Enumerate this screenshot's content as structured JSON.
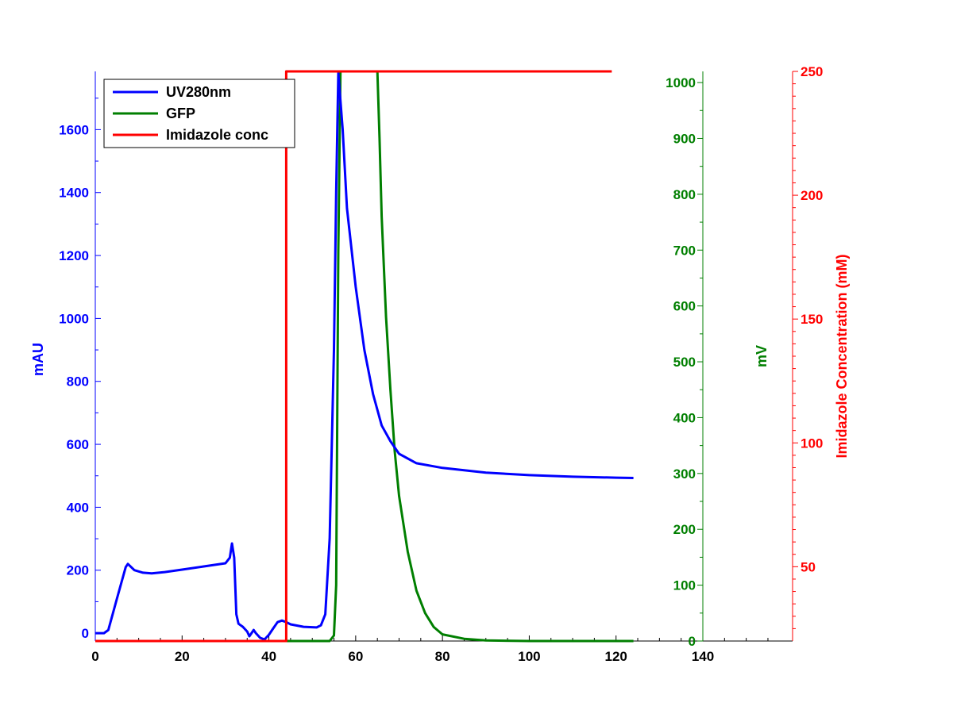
{
  "chart_data": {
    "type": "line",
    "x": {
      "ticks": [
        "0",
        "20",
        "40",
        "60",
        "80",
        "100",
        "120",
        "140"
      ],
      "lim": [
        0,
        140
      ]
    },
    "y_left": {
      "label": "mAU",
      "ticks": [
        "0",
        "200",
        "400",
        "600",
        "800",
        "1000",
        "1200",
        "1400",
        "1600"
      ],
      "lim": [
        -25,
        1785
      ],
      "color": "#0000ff"
    },
    "y_mid": {
      "label": "mV",
      "ticks": [
        "0",
        "100",
        "200",
        "300",
        "400",
        "500",
        "600",
        "700",
        "800",
        "900",
        "1000"
      ],
      "lim": [
        0,
        1020
      ],
      "color": "#007f00"
    },
    "y_right": {
      "label": "Imidazole Concentration (mM)",
      "ticks": [
        "50",
        "100",
        "150",
        "200",
        "250"
      ],
      "lim": [
        20,
        250
      ],
      "color": "#ff0000"
    },
    "legend": {
      "position": "top-left"
    },
    "series": [
      {
        "name": "UV280nm",
        "axis": "left",
        "color": "#0000ff",
        "points": [
          [
            0,
            0
          ],
          [
            2,
            0
          ],
          [
            3,
            10
          ],
          [
            5,
            110
          ],
          [
            7,
            210
          ],
          [
            7.5,
            220
          ],
          [
            9,
            200
          ],
          [
            11,
            192
          ],
          [
            13,
            190
          ],
          [
            16,
            194
          ],
          [
            20,
            202
          ],
          [
            25,
            212
          ],
          [
            30,
            222
          ],
          [
            31,
            240
          ],
          [
            31.5,
            285
          ],
          [
            32,
            240
          ],
          [
            32.5,
            60
          ],
          [
            33,
            30
          ],
          [
            34,
            20
          ],
          [
            35,
            5
          ],
          [
            35.5,
            -10
          ],
          [
            36,
            0
          ],
          [
            36.5,
            10
          ],
          [
            37,
            0
          ],
          [
            38,
            -15
          ],
          [
            39,
            -20
          ],
          [
            40,
            -5
          ],
          [
            41,
            15
          ],
          [
            42,
            35
          ],
          [
            43,
            40
          ],
          [
            44,
            35
          ],
          [
            45,
            28
          ],
          [
            48,
            20
          ],
          [
            51,
            18
          ],
          [
            52,
            25
          ],
          [
            53,
            60
          ],
          [
            54,
            300
          ],
          [
            55,
            900
          ],
          [
            55.5,
            1400
          ],
          [
            56,
            1780
          ],
          [
            57,
            1600
          ],
          [
            58,
            1350
          ],
          [
            60,
            1100
          ],
          [
            62,
            900
          ],
          [
            64,
            760
          ],
          [
            66,
            660
          ],
          [
            68,
            610
          ],
          [
            70,
            570
          ],
          [
            74,
            540
          ],
          [
            80,
            525
          ],
          [
            90,
            510
          ],
          [
            100,
            502
          ],
          [
            110,
            497
          ],
          [
            120,
            494
          ],
          [
            124,
            493
          ]
        ]
      },
      {
        "name": "GFP",
        "axis": "mid",
        "color": "#007f00",
        "points": [
          [
            0,
            0
          ],
          [
            54,
            0
          ],
          [
            55,
            10
          ],
          [
            55.5,
            100
          ],
          [
            56,
            700
          ],
          [
            56.5,
            1020
          ],
          [
            65,
            1020
          ],
          [
            65.5,
            900
          ],
          [
            66,
            760
          ],
          [
            67,
            580
          ],
          [
            68,
            450
          ],
          [
            69,
            340
          ],
          [
            70,
            260
          ],
          [
            72,
            160
          ],
          [
            74,
            90
          ],
          [
            76,
            50
          ],
          [
            78,
            25
          ],
          [
            80,
            12
          ],
          [
            85,
            4
          ],
          [
            90,
            1
          ],
          [
            100,
            0
          ],
          [
            124,
            0
          ]
        ]
      },
      {
        "name": "Imidazole conc",
        "axis": "right",
        "color": "#ff0000",
        "points": [
          [
            0,
            20
          ],
          [
            44,
            20
          ],
          [
            44,
            250
          ],
          [
            119,
            250
          ]
        ]
      }
    ]
  }
}
